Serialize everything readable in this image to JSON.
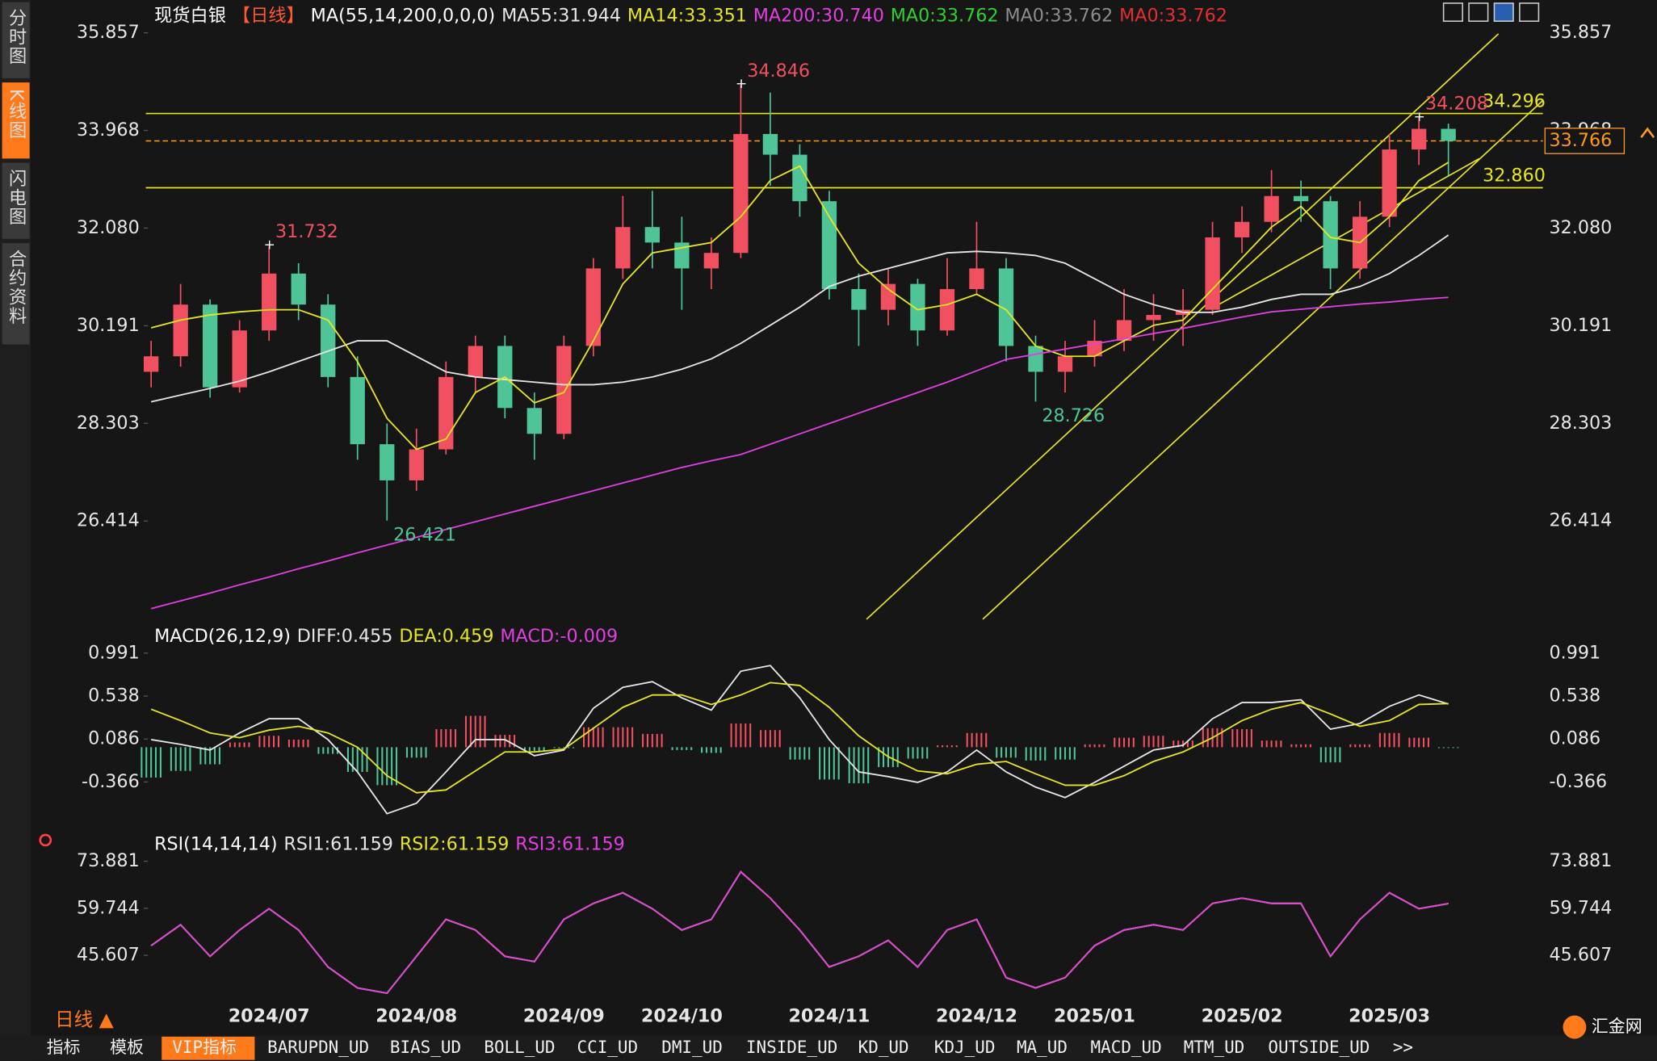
{
  "ui": {
    "sidebar_tabs": [
      "分时图",
      "K线图",
      "闪电图",
      "合约资料"
    ],
    "bottom_tabs": [
      "指标",
      "模板",
      "VIP指标",
      "BARUPDN_UD",
      "BIAS_UD",
      "BOLL_UD",
      "CCI_UD",
      "DMI_UD",
      "INSIDE_UD",
      "KD_UD",
      "KDJ_UD",
      "MA_UD",
      "MACD_UD",
      "MTM_UD",
      "OUTSIDE_UD",
      ">>"
    ],
    "period": "日线 ▲",
    "brand": "汇金网"
  },
  "chart_data": [
    {
      "type": "candlestick",
      "title": "现货白银",
      "period": "【日线】",
      "indicator": "MA(55,14,200,0,0,0)",
      "categories": [
        null,
        null,
        null,
        null,
        "2024/07",
        null,
        null,
        null,
        null,
        "2024/08",
        null,
        null,
        null,
        null,
        "2024/09",
        null,
        null,
        null,
        "2024/10",
        null,
        null,
        null,
        null,
        "2024/11",
        null,
        null,
        null,
        null,
        "2024/12",
        null,
        null,
        null,
        "2025/01",
        null,
        null,
        null,
        null,
        "2025/02",
        null,
        null,
        null,
        null,
        "2025/03",
        null,
        null
      ],
      "open": [
        29.3,
        29.6,
        30.6,
        29.0,
        30.1,
        31.2,
        30.6,
        29.2,
        27.9,
        27.2,
        27.8,
        29.2,
        29.8,
        28.6,
        28.1,
        29.8,
        31.3,
        32.1,
        31.8,
        31.3,
        31.6,
        33.9,
        33.5,
        32.6,
        30.9,
        30.5,
        31.0,
        30.1,
        30.9,
        31.3,
        29.8,
        29.3,
        29.6,
        29.9,
        30.3,
        30.4,
        30.5,
        31.9,
        32.2,
        32.7,
        32.6,
        31.3,
        32.3,
        33.6,
        34.0
      ],
      "high": [
        29.9,
        31.0,
        30.7,
        30.3,
        31.732,
        31.4,
        30.8,
        29.6,
        28.3,
        28.2,
        29.5,
        30.0,
        30.0,
        28.9,
        30.0,
        31.5,
        32.7,
        32.8,
        32.3,
        31.9,
        34.846,
        34.7,
        33.7,
        32.8,
        31.2,
        31.3,
        31.1,
        31.5,
        32.2,
        31.5,
        30.0,
        29.9,
        30.3,
        30.9,
        30.8,
        30.9,
        32.2,
        32.5,
        33.2,
        33.0,
        32.7,
        32.6,
        33.9,
        34.208,
        34.1
      ],
      "low": [
        29.0,
        29.4,
        28.8,
        28.9,
        29.9,
        30.3,
        29.0,
        27.6,
        26.421,
        27.0,
        27.7,
        28.9,
        28.4,
        27.6,
        28.0,
        29.6,
        31.1,
        31.3,
        30.5,
        30.9,
        31.5,
        32.9,
        32.3,
        30.7,
        29.8,
        30.2,
        29.8,
        30.0,
        30.8,
        29.5,
        28.726,
        28.9,
        29.4,
        29.7,
        29.9,
        29.8,
        30.4,
        31.6,
        32.0,
        32.2,
        30.9,
        31.1,
        32.1,
        33.3,
        33.1
      ],
      "close": [
        29.6,
        30.6,
        29.0,
        30.1,
        31.2,
        30.6,
        29.2,
        27.9,
        27.2,
        27.8,
        29.2,
        29.8,
        28.6,
        28.1,
        29.8,
        31.3,
        32.1,
        31.8,
        31.3,
        31.6,
        33.9,
        33.5,
        32.6,
        30.9,
        30.5,
        31.0,
        30.1,
        30.9,
        31.3,
        29.8,
        29.3,
        29.6,
        29.9,
        30.3,
        30.4,
        30.5,
        31.9,
        32.2,
        32.7,
        32.6,
        31.3,
        32.3,
        33.6,
        34.0,
        33.766
      ],
      "up_color": "#f0505f",
      "down_color": "#4fc496",
      "series": [
        {
          "name": "MA55:31.944",
          "color": "#e6e6e6",
          "values": [
            28.72,
            28.85,
            28.98,
            29.12,
            29.3,
            29.5,
            29.7,
            29.9,
            29.9,
            29.6,
            29.3,
            29.2,
            29.15,
            29.1,
            29.05,
            29.05,
            29.1,
            29.2,
            29.35,
            29.55,
            29.85,
            30.2,
            30.55,
            30.95,
            31.15,
            31.3,
            31.45,
            31.6,
            31.63,
            31.6,
            31.55,
            31.4,
            31.1,
            30.8,
            30.6,
            30.45,
            30.45,
            30.55,
            30.7,
            30.8,
            30.8,
            30.95,
            31.2,
            31.55,
            31.944
          ]
        },
        {
          "name": "MA14:33.351",
          "color": "#e6e620",
          "values": [
            30.15,
            30.3,
            30.4,
            30.46,
            30.5,
            30.5,
            30.3,
            29.5,
            28.4,
            27.8,
            28.0,
            28.9,
            29.2,
            28.7,
            28.9,
            29.9,
            31.0,
            31.6,
            31.7,
            31.8,
            32.3,
            33.0,
            33.28,
            32.3,
            31.4,
            30.9,
            30.5,
            30.6,
            30.8,
            30.5,
            29.8,
            29.6,
            29.6,
            29.9,
            30.2,
            30.3,
            30.9,
            31.5,
            32.1,
            32.5,
            31.9,
            31.8,
            32.3,
            33.0,
            33.351
          ]
        },
        {
          "name": "MA200:30.740",
          "color": "#e040e0",
          "values": [
            24.72,
            24.87,
            25.02,
            25.18,
            25.33,
            25.49,
            25.64,
            25.8,
            25.95,
            26.1,
            26.25,
            26.4,
            26.55,
            26.7,
            26.85,
            27.0,
            27.15,
            27.3,
            27.45,
            27.58,
            27.7,
            27.9,
            28.1,
            28.3,
            28.5,
            28.7,
            28.9,
            29.1,
            29.32,
            29.54,
            29.64,
            29.74,
            29.84,
            29.94,
            30.04,
            30.14,
            30.25,
            30.36,
            30.46,
            30.51,
            30.56,
            30.61,
            30.65,
            30.7,
            30.74
          ]
        }
      ],
      "legend_extra": [
        {
          "name": "MA0:33.762",
          "color": "#30d030"
        },
        {
          "name": "MA0:33.762",
          "color": "#8c8c8c"
        },
        {
          "name": "MA0:33.762",
          "color": "#e03030"
        }
      ],
      "ylim": [
        24.432,
        36.082
      ],
      "yticks": [
        35.857,
        33.968,
        {
          "value": 32.08,
          "label": "32.080"
        },
        30.191,
        28.303,
        26.414
      ],
      "high_labels": [
        34.846,
        31.732,
        34.208
      ],
      "low_labels": [
        26.421,
        28.726
      ],
      "levels": [
        34.296,
        {
          "value": 32.86,
          "label": "32.860"
        }
      ],
      "level_color": "#e6e620",
      "last_color": "#ff9a1a"
    },
    {
      "type": "macd",
      "title": "MACD(26,12,9)",
      "up_color": "#f0505f",
      "down_color": "#4fc496",
      "series": [
        {
          "name": "DIFF:0.455",
          "color": "#e6e6e6",
          "values": [
            0.08,
            0.03,
            -0.03,
            0.15,
            0.3,
            0.3,
            0.08,
            -0.26,
            -0.7,
            -0.59,
            -0.26,
            0.08,
            0.08,
            -0.09,
            -0.03,
            0.41,
            0.63,
            0.69,
            0.52,
            0.39,
            0.8,
            0.86,
            0.52,
            0.08,
            -0.26,
            -0.31,
            -0.37,
            -0.26,
            -0.03,
            -0.26,
            -0.42,
            -0.53,
            -0.37,
            -0.2,
            -0.03,
            0.02,
            0.3,
            0.47,
            0.47,
            0.5,
            0.19,
            0.25,
            0.43,
            0.55,
            0.455
          ]
        },
        {
          "name": "DEA:0.459",
          "color": "#e6e620",
          "values": [
            0.4,
            0.28,
            0.15,
            0.1,
            0.18,
            0.22,
            0.15,
            0.0,
            -0.3,
            -0.48,
            -0.45,
            -0.25,
            -0.05,
            -0.05,
            -0.02,
            0.2,
            0.42,
            0.55,
            0.55,
            0.45,
            0.55,
            0.68,
            0.65,
            0.42,
            0.12,
            -0.1,
            -0.25,
            -0.28,
            -0.18,
            -0.15,
            -0.28,
            -0.4,
            -0.4,
            -0.3,
            -0.15,
            -0.05,
            0.1,
            0.28,
            0.4,
            0.47,
            0.35,
            0.22,
            0.28,
            0.45,
            0.459
          ]
        }
      ],
      "histogram": {
        "name": "MACD:-0.009",
        "color": "#e040e0",
        "values": [
          -0.32,
          -0.25,
          -0.18,
          0.05,
          0.12,
          0.08,
          -0.07,
          -0.26,
          -0.4,
          -0.11,
          0.19,
          0.33,
          0.13,
          -0.04,
          -0.01,
          0.21,
          0.21,
          0.14,
          -0.03,
          -0.06,
          0.25,
          0.18,
          -0.13,
          -0.34,
          -0.38,
          -0.21,
          -0.12,
          0.02,
          0.15,
          -0.11,
          -0.14,
          -0.13,
          0.03,
          0.1,
          0.12,
          0.07,
          0.2,
          0.19,
          0.07,
          0.03,
          -0.16,
          0.03,
          0.15,
          0.1,
          -0.009
        ]
      },
      "ylim": [
        -0.867,
        1.08
      ],
      "yticks": [
        0.991,
        0.538,
        0.086,
        -0.366
      ]
    },
    {
      "type": "line",
      "title": "RSI(14,14,14)",
      "series": [
        {
          "name": "RSI1:61.159",
          "color": "#e6e6e6",
          "values": [
            48.5,
            54.8,
            45.3,
            53.2,
            59.6,
            53.2,
            42.1,
            35.8,
            34.2,
            45.3,
            56.4,
            53.2,
            45.3,
            43.7,
            56.4,
            61.2,
            64.4,
            59.6,
            53.2,
            56.4,
            70.7,
            62.8,
            53.2,
            42.1,
            45.3,
            50.1,
            42.1,
            53.2,
            56.4,
            38.9,
            35.8,
            38.9,
            48.5,
            53.2,
            54.8,
            53.2,
            61.2,
            62.8,
            61.2,
            61.2,
            45.3,
            56.4,
            64.4,
            59.6,
            61.159
          ]
        },
        {
          "name": "RSI2:61.159",
          "color": "#e6e620",
          "values": [
            48.5,
            54.8,
            45.3,
            53.2,
            59.6,
            53.2,
            42.1,
            35.8,
            34.2,
            45.3,
            56.4,
            53.2,
            45.3,
            43.7,
            56.4,
            61.2,
            64.4,
            59.6,
            53.2,
            56.4,
            70.7,
            62.8,
            53.2,
            42.1,
            45.3,
            50.1,
            42.1,
            53.2,
            56.4,
            38.9,
            35.8,
            38.9,
            48.5,
            53.2,
            54.8,
            53.2,
            61.2,
            62.8,
            61.2,
            61.2,
            45.3,
            56.4,
            64.4,
            59.6,
            61.159
          ]
        },
        {
          "name": "RSI3:61.159",
          "color": "#e040e0",
          "values": [
            48.5,
            54.8,
            45.3,
            53.2,
            59.6,
            53.2,
            42.1,
            35.8,
            34.2,
            45.3,
            56.4,
            53.2,
            45.3,
            43.7,
            56.4,
            61.2,
            64.4,
            59.6,
            53.2,
            56.4,
            70.7,
            62.8,
            53.2,
            42.1,
            45.3,
            50.1,
            42.1,
            53.2,
            56.4,
            38.9,
            35.8,
            38.9,
            48.5,
            53.2,
            54.8,
            53.2,
            61.2,
            62.8,
            61.2,
            61.2,
            45.3,
            56.4,
            64.4,
            59.6,
            61.159
          ]
        }
      ],
      "ylim": [
        30.99,
        76.1
      ],
      "yticks": [
        73.881,
        59.744,
        45.607
      ]
    }
  ]
}
